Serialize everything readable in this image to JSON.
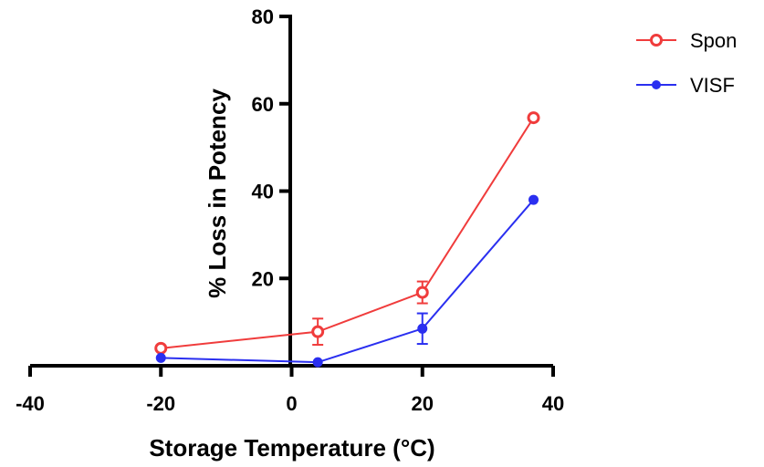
{
  "chart_data": {
    "type": "line",
    "title": "",
    "xlabel": "Storage Temperature (°C)",
    "ylabel": "% Loss in Potency",
    "xlim": [
      -40,
      40
    ],
    "ylim": [
      0,
      80
    ],
    "x_ticks": [
      -40,
      -20,
      0,
      20,
      40
    ],
    "y_ticks": [
      20,
      40,
      60,
      80
    ],
    "x_tick_labels": [
      "-40",
      "-20",
      "0",
      "20",
      "40"
    ],
    "y_tick_labels": [
      "20",
      "40",
      "60",
      "80"
    ],
    "legend_position": "top-right",
    "grid": false,
    "series": [
      {
        "name": "Spon",
        "color": "#f03c3c",
        "marker": "open-circle",
        "points": [
          {
            "x": -20,
            "y": 4.0,
            "err": 0.5
          },
          {
            "x": 4,
            "y": 7.8,
            "err": 3.0
          },
          {
            "x": 20,
            "y": 16.8,
            "err": 2.5
          },
          {
            "x": 37,
            "y": 56.8,
            "err": 0.5
          }
        ]
      },
      {
        "name": "VISF",
        "color": "#2a2ff0",
        "marker": "filled-circle",
        "points": [
          {
            "x": -20,
            "y": 1.8,
            "err": 0.3
          },
          {
            "x": 4,
            "y": 0.8,
            "err": 0.3
          },
          {
            "x": 20,
            "y": 8.5,
            "err": 3.5
          },
          {
            "x": 37,
            "y": 38.0,
            "err": 0.5
          }
        ]
      }
    ]
  }
}
